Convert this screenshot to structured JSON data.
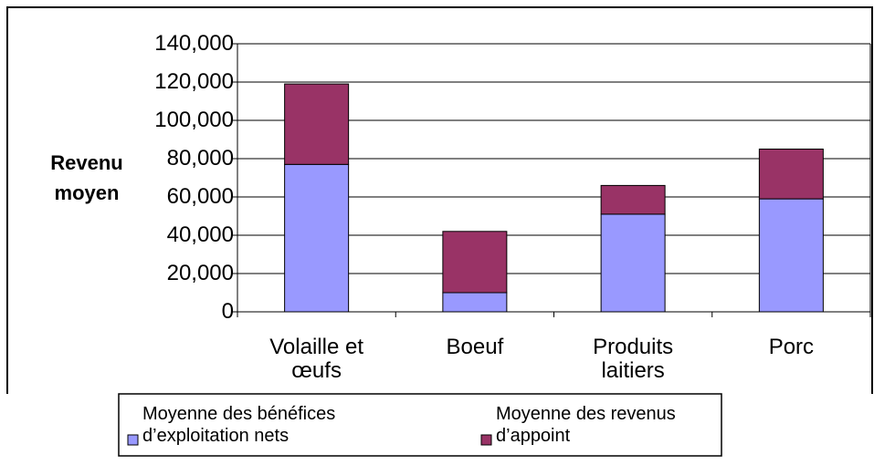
{
  "chart_data": {
    "type": "stacked_bar",
    "ylabel": "Revenu moyen",
    "categories": [
      "Volaille et œufs",
      "Boeuf",
      "Produits laitiers",
      "Porc"
    ],
    "series": [
      {
        "name": "Moyenne des bénéfices d’exploitation nets",
        "color": "#9999ff",
        "values": [
          77000,
          10000,
          51000,
          59000
        ]
      },
      {
        "name": "Moyenne des revenus d’appoint",
        "color": "#993366",
        "values": [
          42000,
          32000,
          15000,
          26000
        ]
      }
    ],
    "ylim": [
      0,
      140000
    ],
    "yticks": [
      0,
      {
        "value": 20000,
        "label": "20,000"
      },
      {
        "value": 40000,
        "label": "40,000"
      },
      {
        "value": 60000,
        "label": "60,000"
      },
      {
        "value": 80000,
        "label": "80,000"
      },
      {
        "value": 100000,
        "label": "100,000"
      },
      {
        "value": 120000,
        "label": "120,000"
      },
      {
        "value": 140000,
        "label": "140,000"
      }
    ],
    "grid": true
  }
}
